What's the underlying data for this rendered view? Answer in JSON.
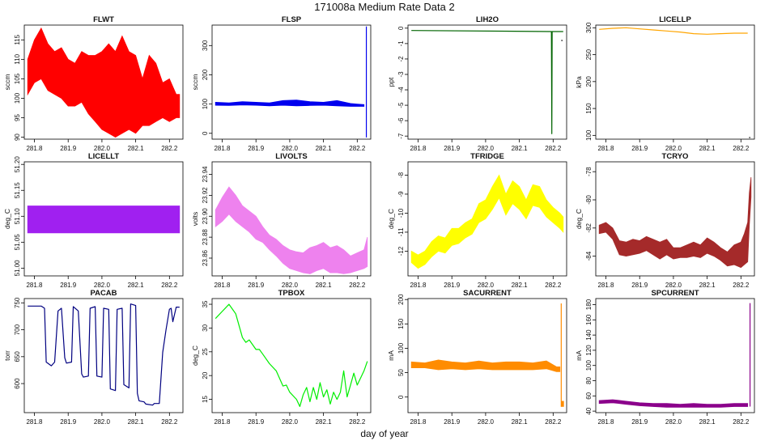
{
  "figure": {
    "title": "171008a   Medium Rate Data 2",
    "xlabel": "day of year"
  },
  "chart_data": [
    {
      "id": "flwt",
      "type": "line",
      "title": "FLWT",
      "ylabel": "sccm",
      "color": "#ff0000",
      "xlim": [
        281.77,
        282.24
      ],
      "ylim": [
        89.5,
        118.8
      ],
      "xticks": [
        281.8,
        281.9,
        282.0,
        282.1,
        282.2
      ],
      "xtick_labels": [
        "281.8",
        "281.9",
        "282.0",
        "282.1",
        "282.2"
      ],
      "yticks": [
        90,
        95,
        100,
        105,
        110,
        115
      ],
      "ytick_labels": [
        "90",
        "95",
        "100",
        "105",
        "110",
        "115"
      ],
      "band": true,
      "x": [
        281.78,
        281.8,
        281.82,
        281.84,
        281.86,
        281.88,
        281.9,
        281.92,
        281.94,
        281.96,
        281.98,
        282.0,
        282.02,
        282.04,
        282.06,
        282.08,
        282.1,
        282.12,
        282.14,
        282.16,
        282.18,
        282.2,
        282.22,
        282.23
      ],
      "upper": [
        110,
        115,
        118,
        114,
        112,
        113,
        110,
        109,
        112,
        111,
        111,
        112,
        114,
        112,
        116,
        112,
        111,
        105,
        111,
        109,
        104,
        105,
        101,
        101
      ],
      "lower": [
        101,
        104,
        105,
        102,
        101,
        100,
        98,
        98,
        99,
        96,
        94,
        92,
        91,
        90,
        91,
        92,
        91,
        93,
        93,
        94,
        95,
        94,
        95,
        95
      ]
    },
    {
      "id": "flsp",
      "type": "line",
      "title": "FLSP",
      "ylabel": "sccm",
      "color": "#0000ee",
      "xlim": [
        281.77,
        282.24
      ],
      "ylim": [
        -20,
        370
      ],
      "xticks": [
        281.8,
        281.9,
        282.0,
        282.1,
        282.2
      ],
      "xtick_labels": [
        "281.8",
        "281.9",
        "282.0",
        "282.1",
        "282.2"
      ],
      "yticks": [
        0,
        100,
        200,
        300
      ],
      "ytick_labels": [
        "0",
        "100",
        "200",
        "300"
      ],
      "band": true,
      "x": [
        281.78,
        281.82,
        281.86,
        281.9,
        281.94,
        281.98,
        282.02,
        282.06,
        282.1,
        282.14,
        282.18,
        282.2,
        282.22
      ],
      "upper": [
        106,
        104,
        108,
        106,
        104,
        112,
        114,
        108,
        106,
        112,
        102,
        100,
        98
      ],
      "lower": [
        96,
        95,
        97,
        96,
        94,
        96,
        94,
        95,
        96,
        94,
        92,
        92,
        92
      ],
      "spike_x": 282.227,
      "spike_range": [
        -14,
        365
      ]
    },
    {
      "id": "lih2o",
      "type": "line",
      "title": "LIH2O",
      "ylabel": "ppt",
      "color": "#006400",
      "xlim": [
        281.77,
        282.24
      ],
      "ylim": [
        -7.2,
        0.2
      ],
      "xticks": [
        281.8,
        281.9,
        282.0,
        282.1,
        282.2
      ],
      "xtick_labels": [
        "281.8",
        "281.9",
        "282.0",
        "282.1",
        "282.2"
      ],
      "yticks": [
        -7,
        -6,
        -5,
        -4,
        -3,
        -2,
        -1,
        0
      ],
      "ytick_labels": [
        "-7",
        "-6",
        "-5",
        "-4",
        "-3",
        "-2",
        "-1",
        "0"
      ],
      "x": [
        281.78,
        282.195,
        282.196,
        282.197,
        282.23
      ],
      "y": [
        -0.15,
        -0.22,
        -6.85,
        -0.22,
        -0.22
      ],
      "dot": [
        282.226,
        -0.8
      ]
    },
    {
      "id": "licellp",
      "type": "line",
      "title": "LICELLP",
      "ylabel": "kPa",
      "color": "#ffa500",
      "xlim": [
        281.77,
        282.24
      ],
      "ylim": [
        93,
        305
      ],
      "xticks": [
        281.8,
        281.9,
        282.0,
        282.1,
        282.2
      ],
      "xtick_labels": [
        "281.8",
        "281.9",
        "282.0",
        "282.1",
        "282.2"
      ],
      "yticks": [
        100,
        150,
        200,
        250,
        300
      ],
      "ytick_labels": [
        "100",
        "150",
        "200",
        "250",
        "300"
      ],
      "x": [
        281.78,
        281.82,
        281.86,
        281.9,
        281.94,
        281.98,
        282.02,
        282.06,
        282.1,
        282.14,
        282.18,
        282.22
      ],
      "y": [
        297,
        299,
        300,
        298,
        296,
        294,
        292,
        289,
        288,
        289,
        290,
        290
      ],
      "dot": [
        282.226,
        96
      ]
    },
    {
      "id": "licellt",
      "type": "line",
      "title": "LICELLT",
      "ylabel": "deg_C",
      "color": "#a020f0",
      "xlim": [
        281.77,
        282.24
      ],
      "ylim": [
        50.985,
        51.205
      ],
      "xticks": [
        281.8,
        281.9,
        282.0,
        282.1,
        282.2
      ],
      "xtick_labels": [
        "281.8",
        "281.9",
        "282.0",
        "282.1",
        "282.2"
      ],
      "yticks": [
        51.0,
        51.05,
        51.1,
        51.15,
        51.2
      ],
      "ytick_labels": [
        "51.00",
        "51.05",
        "51.10",
        "51.15",
        "51.20"
      ],
      "band": true,
      "x": [
        281.78,
        282.23
      ],
      "upper": [
        51.12,
        51.12
      ],
      "lower": [
        51.068,
        51.068
      ]
    },
    {
      "id": "livolts",
      "type": "line",
      "title": "LIVOLTS",
      "ylabel": "volts",
      "color": "#ee82ee",
      "xlim": [
        281.77,
        282.24
      ],
      "ylim": [
        23.843,
        23.952
      ],
      "xticks": [
        281.8,
        281.9,
        282.0,
        282.1,
        282.2
      ],
      "xtick_labels": [
        "281.8",
        "281.9",
        "282.0",
        "282.1",
        "282.2"
      ],
      "yticks": [
        23.86,
        23.88,
        23.9,
        23.92,
        23.94
      ],
      "ytick_labels": [
        "23.86",
        "23.88",
        "23.90",
        "23.92",
        "23.94"
      ],
      "band": true,
      "x": [
        281.78,
        281.8,
        281.82,
        281.84,
        281.86,
        281.88,
        281.9,
        281.92,
        281.94,
        281.96,
        281.98,
        282.0,
        282.02,
        282.04,
        282.06,
        282.08,
        282.1,
        282.12,
        282.14,
        282.16,
        282.18,
        282.2,
        282.22,
        282.23
      ],
      "upper": [
        23.906,
        23.918,
        23.928,
        23.92,
        23.91,
        23.905,
        23.9,
        23.89,
        23.882,
        23.878,
        23.872,
        23.868,
        23.866,
        23.865,
        23.87,
        23.872,
        23.875,
        23.87,
        23.872,
        23.868,
        23.862,
        23.865,
        23.868,
        23.88
      ],
      "lower": [
        23.89,
        23.895,
        23.902,
        23.895,
        23.89,
        23.885,
        23.878,
        23.875,
        23.868,
        23.862,
        23.855,
        23.85,
        23.848,
        23.846,
        23.845,
        23.848,
        23.85,
        23.846,
        23.846,
        23.845,
        23.846,
        23.848,
        23.85,
        23.852
      ]
    },
    {
      "id": "tfridge",
      "type": "line",
      "title": "TFRIDGE",
      "ylabel": "deg_C",
      "color": "#ffff00",
      "xlim": [
        281.77,
        282.24
      ],
      "ylim": [
        -13.3,
        -7.3
      ],
      "xticks": [
        281.8,
        281.9,
        282.0,
        282.1,
        282.2
      ],
      "xtick_labels": [
        "281.8",
        "281.9",
        "282.0",
        "282.1",
        "282.2"
      ],
      "yticks": [
        -12,
        -11,
        -10,
        -9,
        -8
      ],
      "ytick_labels": [
        "-12",
        "-11",
        "-10",
        "-9",
        "-8"
      ],
      "band": true,
      "x": [
        281.78,
        281.8,
        281.82,
        281.84,
        281.86,
        281.88,
        281.9,
        281.92,
        281.94,
        281.96,
        281.98,
        282.0,
        282.02,
        282.04,
        282.06,
        282.08,
        282.1,
        282.12,
        282.14,
        282.16,
        282.18,
        282.2,
        282.22,
        282.23
      ],
      "upper": [
        -12.0,
        -12.2,
        -12.0,
        -11.5,
        -11.2,
        -11.3,
        -10.8,
        -10.8,
        -10.5,
        -10.3,
        -9.5,
        -9.3,
        -8.6,
        -8.0,
        -9.0,
        -8.3,
        -8.6,
        -9.3,
        -8.5,
        -8.6,
        -9.3,
        -9.7,
        -10.0,
        -10.2
      ],
      "lower": [
        -12.6,
        -12.9,
        -12.7,
        -12.3,
        -12.0,
        -12.1,
        -11.7,
        -11.6,
        -11.3,
        -11.1,
        -10.5,
        -10.3,
        -9.8,
        -9.2,
        -10.1,
        -9.5,
        -9.8,
        -10.3,
        -9.6,
        -9.7,
        -10.2,
        -10.5,
        -10.8,
        -11.0
      ]
    },
    {
      "id": "tcryo",
      "type": "line",
      "title": "TCRYO",
      "ylabel": "deg_C",
      "color": "#a52a2a",
      "xlim": [
        281.77,
        282.24
      ],
      "ylim": [
        -85.4,
        -77.3
      ],
      "xticks": [
        281.8,
        281.9,
        282.0,
        282.1,
        282.2
      ],
      "xtick_labels": [
        "281.8",
        "281.9",
        "282.0",
        "282.1",
        "282.2"
      ],
      "yticks": [
        -84,
        -82,
        -80,
        -78
      ],
      "ytick_labels": [
        "-84",
        "-82",
        "-80",
        "-78"
      ],
      "band": true,
      "x": [
        281.78,
        281.8,
        281.82,
        281.84,
        281.86,
        281.88,
        281.9,
        281.92,
        281.94,
        281.96,
        281.98,
        282.0,
        282.02,
        282.04,
        282.06,
        282.08,
        282.1,
        282.12,
        282.14,
        282.16,
        282.18,
        282.2,
        282.21,
        282.22,
        282.225,
        282.23
      ],
      "upper": [
        -81.8,
        -81.6,
        -82.0,
        -82.9,
        -83.0,
        -82.8,
        -82.9,
        -82.6,
        -82.8,
        -83.0,
        -82.8,
        -83.4,
        -83.4,
        -83.2,
        -83.0,
        -83.2,
        -82.7,
        -83.0,
        -83.4,
        -83.7,
        -83.2,
        -83.0,
        -82.4,
        -81.6,
        -79.5,
        -78.4
      ],
      "lower": [
        -82.4,
        -82.3,
        -82.8,
        -83.9,
        -84.0,
        -83.9,
        -83.8,
        -83.6,
        -83.9,
        -84.2,
        -83.9,
        -84.2,
        -84.1,
        -84.1,
        -84.0,
        -84.1,
        -83.8,
        -84.0,
        -84.3,
        -84.7,
        -84.6,
        -84.8,
        -84.6,
        -84.4,
        -81.8,
        -79.8
      ]
    },
    {
      "id": "pacab",
      "type": "line",
      "title": "PACAB",
      "ylabel": "torr",
      "color": "#000080",
      "xlim": [
        281.77,
        282.24
      ],
      "ylim": [
        546,
        758
      ],
      "xticks": [
        281.8,
        281.9,
        282.0,
        282.1,
        282.2
      ],
      "xtick_labels": [
        "281.8",
        "281.9",
        "282.0",
        "282.1",
        "282.2"
      ],
      "yticks": [
        600,
        650,
        700,
        750
      ],
      "ytick_labels": [
        "600",
        "650",
        "700",
        "750"
      ],
      "x": [
        281.78,
        281.82,
        281.83,
        281.835,
        281.85,
        281.86,
        281.87,
        281.88,
        281.89,
        281.895,
        281.91,
        281.915,
        281.93,
        281.94,
        281.945,
        281.96,
        281.965,
        281.98,
        281.985,
        282.0,
        282.005,
        282.02,
        282.025,
        282.04,
        282.045,
        282.06,
        282.065,
        282.08,
        282.085,
        282.1,
        282.105,
        282.11,
        282.125,
        282.13,
        282.15,
        282.155,
        282.17,
        282.18,
        282.19,
        282.2,
        282.205,
        282.21,
        282.22,
        282.23
      ],
      "y": [
        744,
        744,
        740,
        640,
        633,
        640,
        735,
        740,
        648,
        638,
        640,
        743,
        735,
        618,
        612,
        614,
        740,
        743,
        614,
        612,
        740,
        738,
        590,
        587,
        738,
        740,
        598,
        592,
        748,
        745,
        582,
        568,
        566,
        562,
        560,
        563,
        563,
        658,
        700,
        738,
        740,
        715,
        742,
        742
      ]
    },
    {
      "id": "tpbox",
      "type": "line",
      "title": "TPBOX",
      "ylabel": "deg_C",
      "color": "#00ee00",
      "xlim": [
        281.77,
        282.24
      ],
      "ylim": [
        12.2,
        36.2
      ],
      "xticks": [
        281.8,
        281.9,
        282.0,
        282.1,
        282.2
      ],
      "xtick_labels": [
        "281.8",
        "281.9",
        "282.0",
        "282.1",
        "282.2"
      ],
      "yticks": [
        15,
        20,
        25,
        30,
        35
      ],
      "ytick_labels": [
        "15",
        "20",
        "25",
        "30",
        "35"
      ],
      "x": [
        281.78,
        281.8,
        281.82,
        281.83,
        281.84,
        281.86,
        281.87,
        281.88,
        281.9,
        281.91,
        281.92,
        281.94,
        281.96,
        281.98,
        281.99,
        282.0,
        282.02,
        282.03,
        282.04,
        282.05,
        282.06,
        282.07,
        282.08,
        282.09,
        282.1,
        282.11,
        282.12,
        282.13,
        282.14,
        282.15,
        282.16,
        282.17,
        282.18,
        282.19,
        282.2,
        282.21,
        282.22,
        282.23
      ],
      "y": [
        32,
        33.5,
        35,
        34,
        33,
        28,
        27,
        27.5,
        25.5,
        25.5,
        24.5,
        22.5,
        21,
        17.8,
        18,
        16.5,
        15,
        13.5,
        16,
        17.5,
        14.5,
        17.5,
        15,
        18.5,
        15.5,
        17,
        14,
        16.5,
        15,
        16.5,
        21,
        15.5,
        18,
        20.5,
        18,
        19.5,
        21,
        23
      ]
    },
    {
      "id": "sacurrent",
      "type": "line",
      "title": "SACURRENT",
      "ylabel": "mA",
      "color": "#ff8c00",
      "xlim": [
        281.77,
        282.24
      ],
      "ylim": [
        -32,
        202
      ],
      "xticks": [
        281.8,
        281.9,
        282.0,
        282.1,
        282.2
      ],
      "xtick_labels": [
        "281.8",
        "281.9",
        "282.0",
        "282.1",
        "282.2"
      ],
      "yticks": [
        0,
        50,
        100,
        150,
        200
      ],
      "ytick_labels": [
        "0",
        "50",
        "100",
        "150",
        "200"
      ],
      "band": true,
      "x": [
        281.78,
        281.82,
        281.86,
        281.9,
        281.94,
        281.98,
        282.02,
        282.06,
        282.1,
        282.14,
        282.18,
        282.21,
        282.22
      ],
      "upper": [
        72,
        70,
        76,
        72,
        70,
        74,
        70,
        72,
        72,
        70,
        74,
        62,
        62
      ],
      "lower": [
        60,
        60,
        56,
        58,
        56,
        58,
        56,
        56,
        56,
        56,
        58,
        52,
        52
      ],
      "spike_x": 282.224,
      "spike_range": [
        -20,
        192
      ],
      "block": [
        282.224,
        282.232,
        -20,
        -8
      ]
    },
    {
      "id": "spcurrent",
      "type": "line",
      "title": "SPCURRENT",
      "ylabel": "mA",
      "color": "#8b008b",
      "xlim": [
        281.77,
        282.24
      ],
      "ylim": [
        38,
        188
      ],
      "xticks": [
        281.8,
        281.9,
        282.0,
        282.1,
        282.2
      ],
      "xtick_labels": [
        "281.8",
        "281.9",
        "282.0",
        "282.1",
        "282.2"
      ],
      "yticks": [
        40,
        60,
        80,
        100,
        120,
        140,
        160,
        180
      ],
      "ytick_labels": [
        "40",
        "60",
        "80",
        "100",
        "120",
        "140",
        "160",
        "180"
      ],
      "band": true,
      "x": [
        281.78,
        281.82,
        281.86,
        281.9,
        281.94,
        281.98,
        282.02,
        282.06,
        282.1,
        282.14,
        282.18,
        282.22
      ],
      "upper": [
        54,
        55,
        53,
        51,
        50,
        50,
        49,
        50,
        49,
        49,
        50,
        50
      ],
      "lower": [
        50,
        51,
        49,
        47,
        46,
        45,
        45,
        45,
        45,
        45,
        46,
        46
      ],
      "spike_x": 282.227,
      "spike_range": [
        46,
        182
      ]
    }
  ]
}
